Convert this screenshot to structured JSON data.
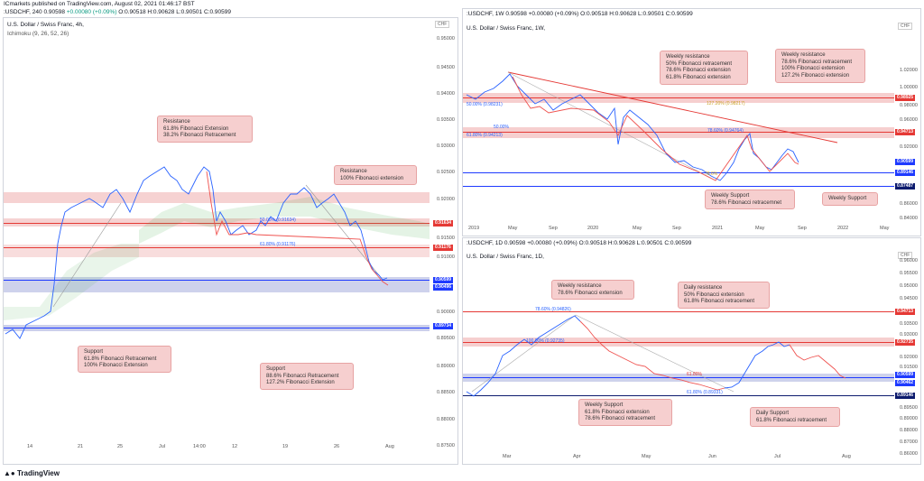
{
  "header": {
    "line1": "ICmarkets published on TradingView.com, August 02, 2021 01:46:17 BST",
    "symbol": ":USDCHF, 240",
    "open": "0.90598",
    "change": "+0.00080 (+0.09%)",
    "o": "O:0.90518",
    "h": "H:0.90628",
    "l": "L:0.90501",
    "c": "C:0.90599"
  },
  "panels": {
    "left": {
      "title": "U.S. Dollar / Swiss Franc, 4h,",
      "indicator": "Ichimoku (9, 26, 52, 26)",
      "currency": "CHF",
      "y_ticks": [
        "0.95000",
        "0.94500",
        "0.94000",
        "0.93500",
        "0.93000",
        "0.92500",
        "0.92000",
        "0.91500",
        "0.91000",
        "0.90500",
        "0.90000",
        "0.89500",
        "0.89000",
        "0.88500",
        "0.88000",
        "0.87500"
      ],
      "x_ticks": [
        "14",
        "21",
        "25",
        "Jul",
        "14:00",
        "12",
        "19",
        "26",
        "Aug"
      ],
      "price_badges": {
        "p1": "0.91634",
        "p2": "0.91176",
        "p3": "0.90599",
        "p4": "0.90496",
        "p5": "0.89734"
      },
      "fib_labels": {
        "f1": "50.00% (0.91634)",
        "f2": "61.80% (0.91176)"
      },
      "callouts": {
        "resistance1": [
          "Resistance",
          "61.8% Fibonacci Extension",
          "38.2% Fibonacci Retracement"
        ],
        "resistance2": [
          "Resistance",
          "100% Fibonacci extension"
        ],
        "support1": [
          "Support",
          "61.8% Fibonacci Retracement",
          "100% Fibonacci Extension"
        ],
        "support2": [
          "Support",
          "88.6% Fibonacci Retracement",
          "127.2% Fibonacci Extension"
        ]
      }
    },
    "top_right": {
      "title": "U.S. Dollar / Swiss Franc, 1W,",
      "symbol_line": ":USDCHF, 1W  0.90598  +0.00080 (+0.09%)  O:0.90518  H:0.90628  L:0.90501  C:0.90599",
      "currency": "CHF",
      "y_ticks": [
        "1.00000",
        "0.98000",
        "0.96000",
        "0.94000",
        "0.92000",
        "0.90000",
        "0.88000",
        "0.86000",
        "0.84000",
        "1.02000"
      ],
      "x_ticks": [
        "2019",
        "May",
        "Sep",
        "2020",
        "May",
        "Sep",
        "2021",
        "May",
        "Sep",
        "2022",
        "May"
      ],
      "price_badges": {
        "p1": "0.98925",
        "p2": "0.94713",
        "p3": "0.90599",
        "p4": "0.89146",
        "p5": "0.87487"
      },
      "fib_labels": {
        "f1": "50.00% (0.98231)",
        "f2": "127.20% (0.98217)",
        "f3": "50.00%",
        "f4": "61.80% (0.94213)",
        "f5": "78.60% (0.94764)",
        "f6": "78.6%"
      },
      "callouts": {
        "wres1": [
          "Weekly resistance",
          "50% Fibonacci retracement",
          "78.6% Fibonacci extension",
          "61.8% Fibonacci extension"
        ],
        "wres2": [
          "Weekly resistance",
          "78.6% Fibonacci retracement",
          "100% Fibonacci extension",
          "127.2% Fibonacci extension"
        ],
        "wsup1": [
          "Weekly Support",
          "78.6% Fibonacci retracemnet"
        ],
        "wsup2": [
          "Weekly Support"
        ]
      }
    },
    "bottom_right": {
      "title": "U.S. Dollar / Swiss Franc, 1D,",
      "symbol_line": ":USDCHF, 1D  0.90598  +0.00080 (+0.09%)  O:0.90518  H:0.90628  L:0.90501  C:0.90599",
      "currency": "CHF",
      "y_ticks": [
        "0.96000",
        "0.95500",
        "0.95000",
        "0.94500",
        "0.94000",
        "0.93500",
        "0.93000",
        "0.92500",
        "0.92000",
        "0.91500",
        "0.91000",
        "0.90500",
        "0.90000",
        "0.89500",
        "0.89000",
        "0.88500",
        "0.88000",
        "0.87500",
        "0.87000",
        "0.86500",
        "0.86000"
      ],
      "x_ticks": [
        "Mar",
        "Apr",
        "May",
        "Jun",
        "Jul",
        "Aug"
      ],
      "price_badges": {
        "p1": "0.94713",
        "p2": "0.92735",
        "p3": "0.90599",
        "p4": "0.90462",
        "p5": "0.89146"
      },
      "fib_labels": {
        "f1": "78.60% (0.94826)",
        "f2": "100.00% (0.92735)",
        "f3": "61.80%",
        "f4": "61.80% (0.89331)"
      },
      "callouts": {
        "wres": [
          "Weekly resistance",
          "78.6% Fibonacci extension"
        ],
        "dres": [
          "Daily resistance",
          "50% Fibonacci extension",
          "61.8% Fibonacci retracement"
        ],
        "wsup": [
          "Weekly Support",
          "61.8% Fibonacci extension",
          "78.6% Fibonacci retracement"
        ],
        "dsup": [
          "Daily Support",
          "61.8% Fibonacci retracement"
        ]
      }
    }
  },
  "footer": {
    "brand": "TradingView"
  },
  "colors": {
    "bull": "#2962ff",
    "bear": "#ef5350",
    "resistance": "#f4c7c7",
    "support": "#c5cae9",
    "badge_red": "#e53935",
    "badge_blue": "#1e3aff",
    "badge_navy": "#0d1b6e"
  }
}
